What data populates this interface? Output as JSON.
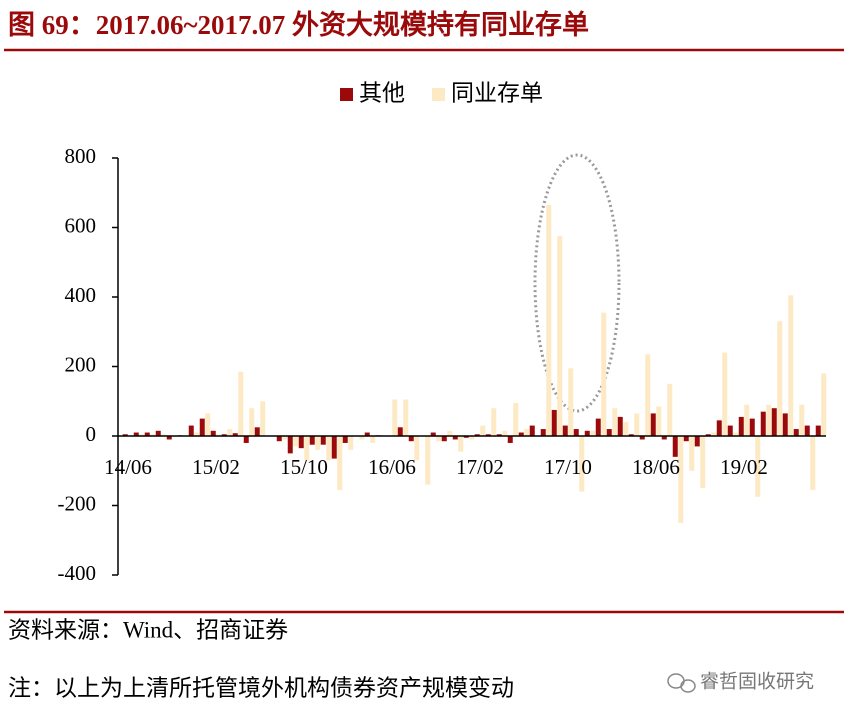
{
  "chart_data": {
    "type": "bar",
    "title": "图 69：2017.06~2017.07 外资大规模持有同业存单",
    "categories": [
      "14/06",
      null,
      null,
      null,
      null,
      null,
      null,
      null,
      "15/02",
      null,
      null,
      null,
      null,
      null,
      null,
      null,
      "15/10",
      null,
      null,
      null,
      null,
      null,
      null,
      null,
      "16/06",
      null,
      null,
      null,
      null,
      null,
      null,
      null,
      "17/02",
      null,
      null,
      null,
      null,
      null,
      null,
      null,
      "17/10",
      null,
      null,
      null,
      null,
      null,
      null,
      null,
      "18/06",
      null,
      null,
      null,
      null,
      null,
      null,
      null,
      "19/02",
      null,
      null,
      null,
      null,
      null,
      null,
      null
    ],
    "series": [
      {
        "name": "其他",
        "color": "#9b0a0a",
        "values": [
          5,
          10,
          10,
          15,
          -10,
          2,
          30,
          50,
          15,
          5,
          8,
          -20,
          25,
          0,
          -15,
          -50,
          -35,
          -25,
          -25,
          -65,
          -20,
          0,
          10,
          2,
          0,
          25,
          -15,
          0,
          10,
          -15,
          -10,
          -5,
          5,
          5,
          5,
          -20,
          10,
          30,
          20,
          75,
          30,
          20,
          15,
          50,
          20,
          55,
          5,
          -10,
          65,
          -10,
          -60,
          -15,
          -30,
          5,
          45,
          30,
          55,
          50,
          70,
          80,
          65,
          20,
          30,
          30
        ]
      },
      {
        "name": "同业存单",
        "color": "#fde9c4",
        "values": [
          0,
          5,
          5,
          5,
          0,
          0,
          10,
          65,
          5,
          20,
          185,
          80,
          100,
          0,
          -10,
          -30,
          -70,
          -40,
          -70,
          -155,
          -40,
          -10,
          -20,
          0,
          105,
          105,
          -70,
          -140,
          -15,
          15,
          -45,
          -10,
          30,
          80,
          15,
          95,
          20,
          0,
          665,
          575,
          195,
          -160,
          15,
          355,
          80,
          40,
          65,
          235,
          85,
          150,
          -250,
          -100,
          -150,
          10,
          240,
          10,
          90,
          -175,
          90,
          330,
          405,
          90,
          -155,
          180
        ]
      }
    ],
    "ylim": [
      -400,
      800
    ],
    "yticks": [
      -400,
      -200,
      0,
      200,
      400,
      600,
      800
    ],
    "grid": false
  },
  "source": "资料来源：Wind、招商证券",
  "note": "注：以上为上清所托管境外机构债券资产规模变动",
  "watermark": "睿哲固收研究"
}
